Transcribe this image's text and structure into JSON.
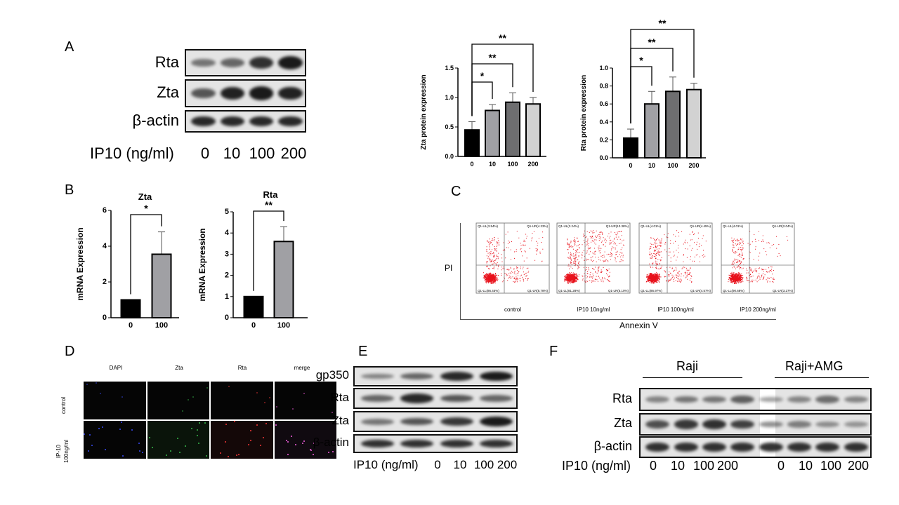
{
  "panels": {
    "A": {
      "label": "A",
      "blots": [
        "Rta",
        "Zta",
        "β-actin"
      ],
      "dose_label": "IP10 (ng/ml)",
      "doses": [
        "0",
        "10",
        "100",
        "200"
      ]
    },
    "B": {
      "label": "B"
    },
    "C": {
      "label": "C",
      "y_label": "PI",
      "x_label": "Annexin V",
      "plots": [
        {
          "name": "control",
          "UL": "Q1-UL(3.54%)",
          "UR": "Q1-UR(4.23%)",
          "LL": "Q1-LL(86.45%)",
          "LR": "Q1-LR(5.78%)"
        },
        {
          "name": "IP10 10ng/ml",
          "UL": "Q1-UL(3.24%)",
          "UR": "Q1-UR(10.38%)",
          "LL": "Q1-LL(81.28%)",
          "LR": "Q1-LR(5.10%)"
        },
        {
          "name": "IP10 100ng/ml",
          "UL": "Q1-UL(4.01%)",
          "UR": "Q1-UR(4.45%)",
          "LL": "Q1-LL(86.97%)",
          "LR": "Q1-LR(4.57%)"
        },
        {
          "name": "IP10 200ng/ml",
          "UL": "Q1-UL(4.01%)",
          "UR": "Q1-UR(2.04%)",
          "LL": "Q1-LL(90.68%)",
          "LR": "Q1-LR(3.27%)"
        }
      ]
    },
    "D": {
      "label": "D",
      "columns": [
        "DAPI",
        "Zta",
        "Rta",
        "merge"
      ],
      "rows": [
        "control",
        "IP-10\n100ng/ml"
      ]
    },
    "E": {
      "label": "E",
      "blots": [
        "gp350",
        "Rta",
        "Zta",
        "β-actin"
      ],
      "dose_label": "IP10 (ng/ml)",
      "doses": [
        "0",
        "10",
        "100",
        "200"
      ]
    },
    "F": {
      "label": "F",
      "groups": [
        "Raji",
        "Raji+AMG"
      ],
      "blots": [
        "Rta",
        "Zta",
        "β-actin"
      ],
      "dose_label": "IP10 (ng/ml)",
      "doses": [
        "0",
        "10",
        "100",
        "200",
        "0",
        "10",
        "100",
        "200"
      ]
    }
  },
  "chart_data": [
    {
      "type": "bar",
      "panel": "A",
      "title": "",
      "ylabel": "Zta protein expression",
      "categories": [
        "0",
        "10",
        "100",
        "200"
      ],
      "values": [
        0.45,
        0.78,
        0.92,
        0.89
      ],
      "errors": [
        0.14,
        0.1,
        0.16,
        0.11
      ],
      "ylim": [
        0,
        1.5
      ],
      "yticks": [
        "0.0",
        "0.5",
        "1.0",
        "1.5"
      ],
      "colors": [
        "#000000",
        "#a0a0a4",
        "#6e6e70",
        "#d2d2d2"
      ],
      "significance": [
        {
          "from": "0",
          "to": "10",
          "label": "*"
        },
        {
          "from": "0",
          "to": "100",
          "label": "**"
        },
        {
          "from": "0",
          "to": "200",
          "label": "**"
        }
      ]
    },
    {
      "type": "bar",
      "panel": "A",
      "title": "",
      "ylabel": "Rta protein expression",
      "categories": [
        "0",
        "10",
        "100",
        "200"
      ],
      "values": [
        0.22,
        0.6,
        0.74,
        0.76
      ],
      "errors": [
        0.1,
        0.14,
        0.16,
        0.07
      ],
      "ylim": [
        0,
        1.0
      ],
      "yticks": [
        "0.0",
        "0.2",
        "0.4",
        "0.6",
        "0.8",
        "1.0"
      ],
      "colors": [
        "#000000",
        "#a0a0a4",
        "#6e6e70",
        "#d2d2d2"
      ],
      "significance": [
        {
          "from": "0",
          "to": "10",
          "label": "*"
        },
        {
          "from": "0",
          "to": "100",
          "label": "**"
        },
        {
          "from": "0",
          "to": "200",
          "label": "**"
        }
      ]
    },
    {
      "type": "bar",
      "panel": "B",
      "title": "Zta",
      "ylabel": "mRNA Expression",
      "categories": [
        "0",
        "100"
      ],
      "values": [
        1.0,
        3.55
      ],
      "errors": [
        0,
        1.25
      ],
      "ylim": [
        0,
        6
      ],
      "yticks": [
        "0",
        "2",
        "4",
        "6"
      ],
      "colors": [
        "#000000",
        "#a0a0a4"
      ],
      "significance": [
        {
          "from": "0",
          "to": "100",
          "label": "*"
        }
      ]
    },
    {
      "type": "bar",
      "panel": "B",
      "title": "Rta",
      "ylabel": "mRNA Expression",
      "categories": [
        "0",
        "100"
      ],
      "values": [
        1.0,
        3.6
      ],
      "errors": [
        0,
        0.7
      ],
      "ylim": [
        0,
        5
      ],
      "yticks": [
        "0",
        "1",
        "2",
        "3",
        "4",
        "5"
      ],
      "colors": [
        "#000000",
        "#a0a0a4"
      ],
      "significance": [
        {
          "from": "0",
          "to": "100",
          "label": "**"
        }
      ]
    }
  ]
}
